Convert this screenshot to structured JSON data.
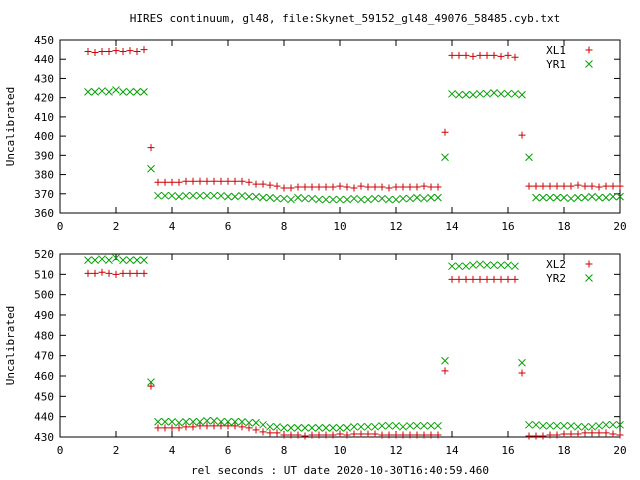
{
  "title": "HIRES continuum, gl48, file:Skynet_59152_gl48_49076_58485.cyb.txt",
  "xlabel": "rel seconds : UT date 2020-10-30T16:40:59.460",
  "chart_data": [
    {
      "type": "scatter",
      "ylabel": "Uncalibrated",
      "xlim": [
        0,
        20
      ],
      "ylim": [
        360,
        450
      ],
      "xticks": [
        0,
        2,
        4,
        6,
        8,
        10,
        12,
        14,
        16,
        18,
        20
      ],
      "yticks": [
        360,
        370,
        380,
        390,
        400,
        410,
        420,
        430,
        440,
        450
      ],
      "legend_position": "top-right",
      "series": [
        {
          "name": "XL1",
          "marker": "plus",
          "color": "#cc0000",
          "x": [
            1.0,
            1.25,
            1.5,
            1.75,
            2.0,
            2.25,
            2.5,
            2.75,
            3.0,
            3.25,
            3.5,
            3.75,
            4.0,
            4.25,
            4.5,
            4.75,
            5.0,
            5.25,
            5.5,
            5.75,
            6.0,
            6.25,
            6.5,
            6.75,
            7.0,
            7.25,
            7.5,
            7.75,
            8.0,
            8.25,
            8.5,
            8.75,
            9.0,
            9.25,
            9.5,
            9.75,
            10.0,
            10.25,
            10.5,
            10.75,
            11.0,
            11.25,
            11.5,
            11.75,
            12.0,
            12.25,
            12.5,
            12.75,
            13.0,
            13.25,
            13.5,
            13.75,
            14.0,
            14.25,
            14.5,
            14.75,
            15.0,
            15.25,
            15.5,
            15.75,
            16.0,
            16.25,
            16.5,
            16.75,
            17.0,
            17.25,
            17.5,
            17.75,
            18.0,
            18.25,
            18.5,
            18.75,
            19.0,
            19.25,
            19.5,
            19.75,
            20.0
          ],
          "y": [
            444,
            443.5,
            444,
            444,
            444.5,
            444,
            444.5,
            444,
            445,
            394,
            376,
            376,
            376,
            376,
            376.5,
            376.5,
            376.5,
            376.5,
            376.5,
            376.5,
            376.5,
            376.5,
            376.5,
            376,
            375,
            375,
            374.5,
            374,
            373,
            373,
            373.5,
            373.5,
            373.5,
            373.5,
            373.5,
            373.5,
            374,
            373.5,
            373,
            374,
            373.5,
            373.5,
            373.5,
            373,
            373.5,
            373.5,
            373.5,
            373.5,
            374,
            373.5,
            373.5,
            402,
            442,
            442,
            442,
            441.5,
            442,
            442,
            442,
            441.5,
            442,
            441,
            400.5,
            374,
            374,
            374,
            374,
            374,
            374,
            374,
            374.5,
            374,
            374,
            373.5,
            374,
            374,
            374
          ]
        },
        {
          "name": "YR1",
          "marker": "cross",
          "color": "#00a000",
          "x": [
            1.0,
            1.25,
            1.5,
            1.75,
            2.0,
            2.25,
            2.5,
            2.75,
            3.0,
            3.25,
            3.5,
            3.75,
            4.0,
            4.25,
            4.5,
            4.75,
            5.0,
            5.25,
            5.5,
            5.75,
            6.0,
            6.25,
            6.5,
            6.75,
            7.0,
            7.25,
            7.5,
            7.75,
            8.0,
            8.25,
            8.5,
            8.75,
            9.0,
            9.25,
            9.5,
            9.75,
            10.0,
            10.25,
            10.5,
            10.75,
            11.0,
            11.25,
            11.5,
            11.75,
            12.0,
            12.25,
            12.5,
            12.75,
            13.0,
            13.25,
            13.5,
            13.75,
            14.0,
            14.25,
            14.5,
            14.75,
            15.0,
            15.25,
            15.5,
            15.75,
            16.0,
            16.25,
            16.5,
            16.75,
            17.0,
            17.25,
            17.5,
            17.75,
            18.0,
            18.25,
            18.5,
            18.75,
            19.0,
            19.25,
            19.5,
            19.75,
            20.0
          ],
          "y": [
            423,
            423,
            423.5,
            423,
            424,
            423,
            423,
            423,
            423,
            383,
            369,
            369,
            369,
            368.5,
            369,
            369,
            369,
            369,
            369,
            369,
            368.5,
            368.5,
            369,
            368.5,
            368.5,
            368,
            368,
            367.5,
            367.5,
            367,
            368,
            367.5,
            367.5,
            367,
            367,
            367,
            367,
            367,
            367.5,
            367,
            367,
            367.5,
            367.5,
            367,
            367,
            367.5,
            367.5,
            368,
            367.5,
            368,
            368,
            389,
            422,
            421.5,
            421.5,
            421.5,
            422,
            422,
            422.5,
            422,
            422,
            422,
            421.5,
            389,
            368,
            368,
            368,
            368,
            368,
            367.5,
            368,
            368,
            368.5,
            368,
            368,
            368.5,
            368.5
          ]
        }
      ]
    },
    {
      "type": "scatter",
      "ylabel": "Uncalibrated",
      "xlim": [
        0,
        20
      ],
      "ylim": [
        430,
        520
      ],
      "xticks": [
        0,
        2,
        4,
        6,
        8,
        10,
        12,
        14,
        16,
        18,
        20
      ],
      "yticks": [
        430,
        440,
        450,
        460,
        470,
        480,
        490,
        500,
        510,
        520
      ],
      "legend_position": "top-right",
      "series": [
        {
          "name": "XL2",
          "marker": "plus",
          "color": "#cc0000",
          "x": [
            1.0,
            1.25,
            1.5,
            1.75,
            2.0,
            2.25,
            2.5,
            2.75,
            3.0,
            3.25,
            3.5,
            3.75,
            4.0,
            4.25,
            4.5,
            4.75,
            5.0,
            5.25,
            5.5,
            5.75,
            6.0,
            6.25,
            6.5,
            6.75,
            7.0,
            7.25,
            7.5,
            7.75,
            8.0,
            8.25,
            8.5,
            8.75,
            9.0,
            9.25,
            9.5,
            9.75,
            10.0,
            10.25,
            10.5,
            10.75,
            11.0,
            11.25,
            11.5,
            11.75,
            12.0,
            12.25,
            12.5,
            12.75,
            13.0,
            13.25,
            13.5,
            13.75,
            14.0,
            14.25,
            14.5,
            14.75,
            15.0,
            15.25,
            15.5,
            15.75,
            16.0,
            16.25,
            16.5,
            16.75,
            17.0,
            17.25,
            17.5,
            17.75,
            18.0,
            18.25,
            18.5,
            18.75,
            19.0,
            19.25,
            19.5,
            19.75,
            20.0
          ],
          "y": [
            510.5,
            510.5,
            511,
            510.5,
            510,
            510.5,
            510.5,
            510.5,
            510.5,
            455,
            434.5,
            434.5,
            434.5,
            434.5,
            435,
            435,
            435.5,
            435.5,
            435.5,
            435.5,
            435.5,
            435.5,
            435,
            434.5,
            433.5,
            432.5,
            432,
            432,
            431,
            431,
            431,
            430.5,
            431,
            431,
            431,
            431,
            431.5,
            431,
            431.5,
            431.5,
            431.5,
            431.5,
            431,
            431,
            431,
            431,
            431,
            431,
            431,
            431,
            431,
            462.5,
            507.5,
            507.5,
            507.5,
            507.5,
            507.5,
            507.5,
            507.5,
            507.5,
            507.5,
            507.5,
            461.5,
            430.5,
            430.5,
            430.5,
            431,
            431,
            431.5,
            431.5,
            431.5,
            432,
            432,
            432,
            432,
            431.5,
            431
          ]
        },
        {
          "name": "YR2",
          "marker": "cross",
          "color": "#00a000",
          "x": [
            1.0,
            1.25,
            1.5,
            1.75,
            2.0,
            2.25,
            2.5,
            2.75,
            3.0,
            3.25,
            3.5,
            3.75,
            4.0,
            4.25,
            4.5,
            4.75,
            5.0,
            5.25,
            5.5,
            5.75,
            6.0,
            6.25,
            6.5,
            6.75,
            7.0,
            7.25,
            7.5,
            7.75,
            8.0,
            8.25,
            8.5,
            8.75,
            9.0,
            9.25,
            9.5,
            9.75,
            10.0,
            10.25,
            10.5,
            10.75,
            11.0,
            11.25,
            11.5,
            11.75,
            12.0,
            12.25,
            12.5,
            12.75,
            13.0,
            13.25,
            13.5,
            13.75,
            14.0,
            14.25,
            14.5,
            14.75,
            15.0,
            15.25,
            15.5,
            15.75,
            16.0,
            16.25,
            16.5,
            16.75,
            17.0,
            17.25,
            17.5,
            17.75,
            18.0,
            18.25,
            18.5,
            18.75,
            19.0,
            19.25,
            19.5,
            19.75,
            20.0
          ],
          "y": [
            517,
            517,
            517.5,
            517,
            518,
            517,
            517,
            517,
            517,
            457,
            437.5,
            437.5,
            437.5,
            437,
            437.5,
            437.5,
            437.5,
            438,
            438,
            437.5,
            437.5,
            437.5,
            437.5,
            437,
            437,
            436,
            435,
            435,
            434.5,
            434.5,
            434.5,
            434.5,
            434.5,
            434.5,
            434.5,
            434.5,
            434.5,
            434.5,
            435,
            435,
            435,
            435,
            435.5,
            435.5,
            435.5,
            435,
            435.5,
            435.5,
            435.5,
            435.5,
            435.5,
            467.5,
            514,
            514,
            514,
            514.5,
            515,
            514.5,
            514.5,
            514.5,
            514.5,
            514,
            466.5,
            436,
            436,
            435.5,
            435.5,
            435.5,
            435.5,
            435.5,
            435,
            435,
            435,
            435.5,
            436,
            436,
            436
          ]
        }
      ]
    }
  ]
}
